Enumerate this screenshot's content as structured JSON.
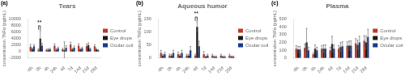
{
  "chart_data": [
    {
      "type": "bar",
      "label": "(a)",
      "title": "Tears",
      "ylabel": "concentration TNFα (pg/mL)",
      "categories": [
        "-6h",
        "0h",
        "4h",
        "24h",
        "4d",
        "7d",
        "14d",
        "21d",
        "28d"
      ],
      "series": [
        {
          "name": "Control",
          "color": "#c0392b",
          "values": [
            1500,
            600,
            500,
            1800,
            700,
            2200,
            1800,
            1700,
            1600
          ],
          "errors": [
            700,
            300,
            250,
            600,
            300,
            700,
            600,
            600,
            500
          ]
        },
        {
          "name": "Eye drops",
          "color": "#1a1a1a",
          "values": [
            800,
            4000,
            600,
            600,
            500,
            700,
            700,
            2000,
            700
          ],
          "errors": [
            300,
            2500,
            300,
            300,
            2500,
            300,
            300,
            700,
            300
          ]
        },
        {
          "name": "Ocular coil",
          "color": "#1a3a8a",
          "values": [
            1600,
            1800,
            700,
            1000,
            1200,
            1200,
            1000,
            800,
            400
          ],
          "errors": [
            600,
            700,
            300,
            400,
            600,
            500,
            400,
            300,
            150
          ]
        }
      ],
      "ylim": [
        -2000,
        10000
      ],
      "yticks": [
        -2000,
        0,
        2000,
        4000,
        6000,
        8000,
        10000
      ],
      "annotations": [
        {
          "text": "**",
          "category": "0h",
          "series": [
            "Control",
            "Eye drops"
          ]
        }
      ],
      "grid": false,
      "legend": "right"
    },
    {
      "type": "bar",
      "label": "(b)",
      "title": "Aqueous humor",
      "ylabel": "concentration TNFα (pg/mL)",
      "categories": [
        "-6h",
        "0h",
        "4h",
        "24h",
        "4d",
        "7d",
        "14d",
        "21d",
        "28d"
      ],
      "series": [
        {
          "name": "Control",
          "color": "#c0392b",
          "values": [
            20,
            10,
            15,
            10,
            10,
            15,
            10,
            10,
            10
          ],
          "errors": [
            10,
            5,
            8,
            5,
            5,
            10,
            5,
            5,
            5
          ]
        },
        {
          "name": "Eye drops",
          "color": "#1a1a1a",
          "values": [
            10,
            10,
            10,
            10,
            120,
            5,
            5,
            5,
            5
          ],
          "errors": [
            5,
            5,
            5,
            5,
            20,
            3,
            3,
            3,
            3
          ]
        },
        {
          "name": "Ocular coil",
          "color": "#1a3a8a",
          "values": [
            15,
            20,
            20,
            30,
            45,
            10,
            5,
            5,
            5
          ],
          "errors": [
            8,
            10,
            10,
            15,
            20,
            5,
            3,
            3,
            3
          ]
        }
      ],
      "ylim": [
        0,
        150
      ],
      "yticks": [
        0,
        50,
        100,
        150
      ],
      "annotations": [
        {
          "text": "**",
          "category": "4d",
          "series": [
            "Control",
            "Eye drops"
          ]
        }
      ],
      "grid": false,
      "legend": "right"
    },
    {
      "type": "bar",
      "label": "(c)",
      "title": "Plasma",
      "ylabel": "concentration TNFα (pg/mL)",
      "categories": [
        "-6h",
        "0h",
        "4h",
        "24h",
        "4d",
        "7d",
        "14d",
        "21d",
        "28d"
      ],
      "series": [
        {
          "name": "Control",
          "color": "#c0392b",
          "values": [
            120,
            130,
            50,
            120,
            100,
            120,
            160,
            190,
            220
          ],
          "errors": [
            40,
            50,
            20,
            40,
            40,
            40,
            50,
            60,
            70
          ]
        },
        {
          "name": "Eye drops",
          "color": "#1a1a1a",
          "values": [
            110,
            200,
            120,
            120,
            180,
            140,
            160,
            170,
            200
          ],
          "errors": [
            40,
            180,
            50,
            50,
            100,
            60,
            60,
            60,
            80
          ]
        },
        {
          "name": "Ocular coil",
          "color": "#1a3a8a",
          "values": [
            110,
            100,
            100,
            120,
            120,
            150,
            160,
            200,
            270
          ],
          "errors": [
            40,
            40,
            40,
            50,
            50,
            60,
            60,
            80,
            100
          ]
        }
      ],
      "ylim": [
        0,
        500
      ],
      "yticks": [
        0,
        100,
        200,
        300,
        400,
        500
      ],
      "grid": false,
      "legend": "right"
    }
  ]
}
